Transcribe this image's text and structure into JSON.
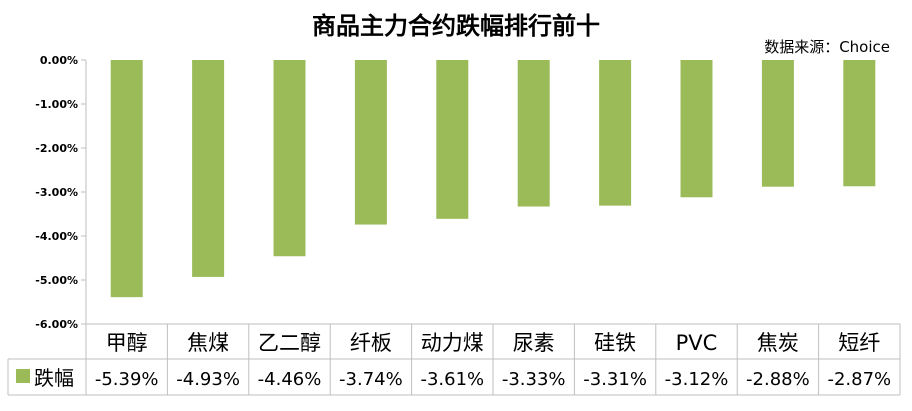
{
  "chart_data": {
    "type": "bar",
    "title": "商品主力合约跌幅排行前十",
    "source": "数据来源：Choice",
    "categories": [
      "甲醇",
      "焦煤",
      "乙二醇",
      "纤板",
      "动力煤",
      "尿素",
      "硅铁",
      "PVC",
      "焦炭",
      "短纤"
    ],
    "series": [
      {
        "name": "跌幅",
        "values": [
          -5.39,
          -4.93,
          -4.46,
          -3.74,
          -3.61,
          -3.33,
          -3.31,
          -3.12,
          -2.88,
          -2.87
        ],
        "labels": [
          "-5.39%",
          "-4.93%",
          "-4.46%",
          "-3.74%",
          "-3.61%",
          "-3.33%",
          "-3.31%",
          "-3.12%",
          "-2.88%",
          "-2.87%"
        ],
        "color": "#9bbb59"
      }
    ],
    "yticks": [
      "0.00%",
      "-1.00%",
      "-2.00%",
      "-3.00%",
      "-4.00%",
      "-5.00%",
      "-6.00%"
    ],
    "ylim": [
      -6,
      0
    ],
    "grid": false,
    "data_table": true
  }
}
